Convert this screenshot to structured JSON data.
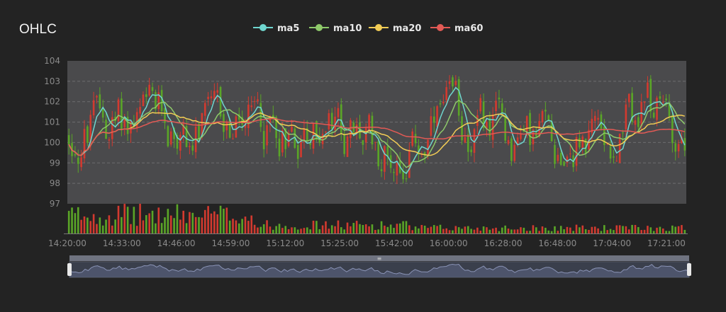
{
  "title": "OHLC",
  "colors": {
    "up": "#d23a2f",
    "down": "#5aa527",
    "ma5": "#6fd6cf",
    "ma10": "#8ec96a",
    "ma20": "#f2cc55",
    "ma60": "#e35a55",
    "plot_bg": "#4a4a4c",
    "page_bg": "#232323"
  },
  "chart_data": {
    "type": "candlestick",
    "legend": [
      "ma5",
      "ma10",
      "ma20",
      "ma60"
    ],
    "legend_position": "top-center",
    "ylim": [
      97,
      104
    ],
    "yticks": [
      97,
      98,
      99,
      100,
      101,
      102,
      103,
      104
    ],
    "grid": true,
    "start_time": "14:20:00",
    "xtick_labels": [
      "14:20:00",
      "14:33:00",
      "14:46:00",
      "14:59:00",
      "15:12:00",
      "15:25:00",
      "15:42:00",
      "16:00:00",
      "16:28:00",
      "16:48:00",
      "17:04:00",
      "17:21:00"
    ],
    "volume_panel": true,
    "data_zoom": {
      "start": 0,
      "end": 100
    }
  }
}
